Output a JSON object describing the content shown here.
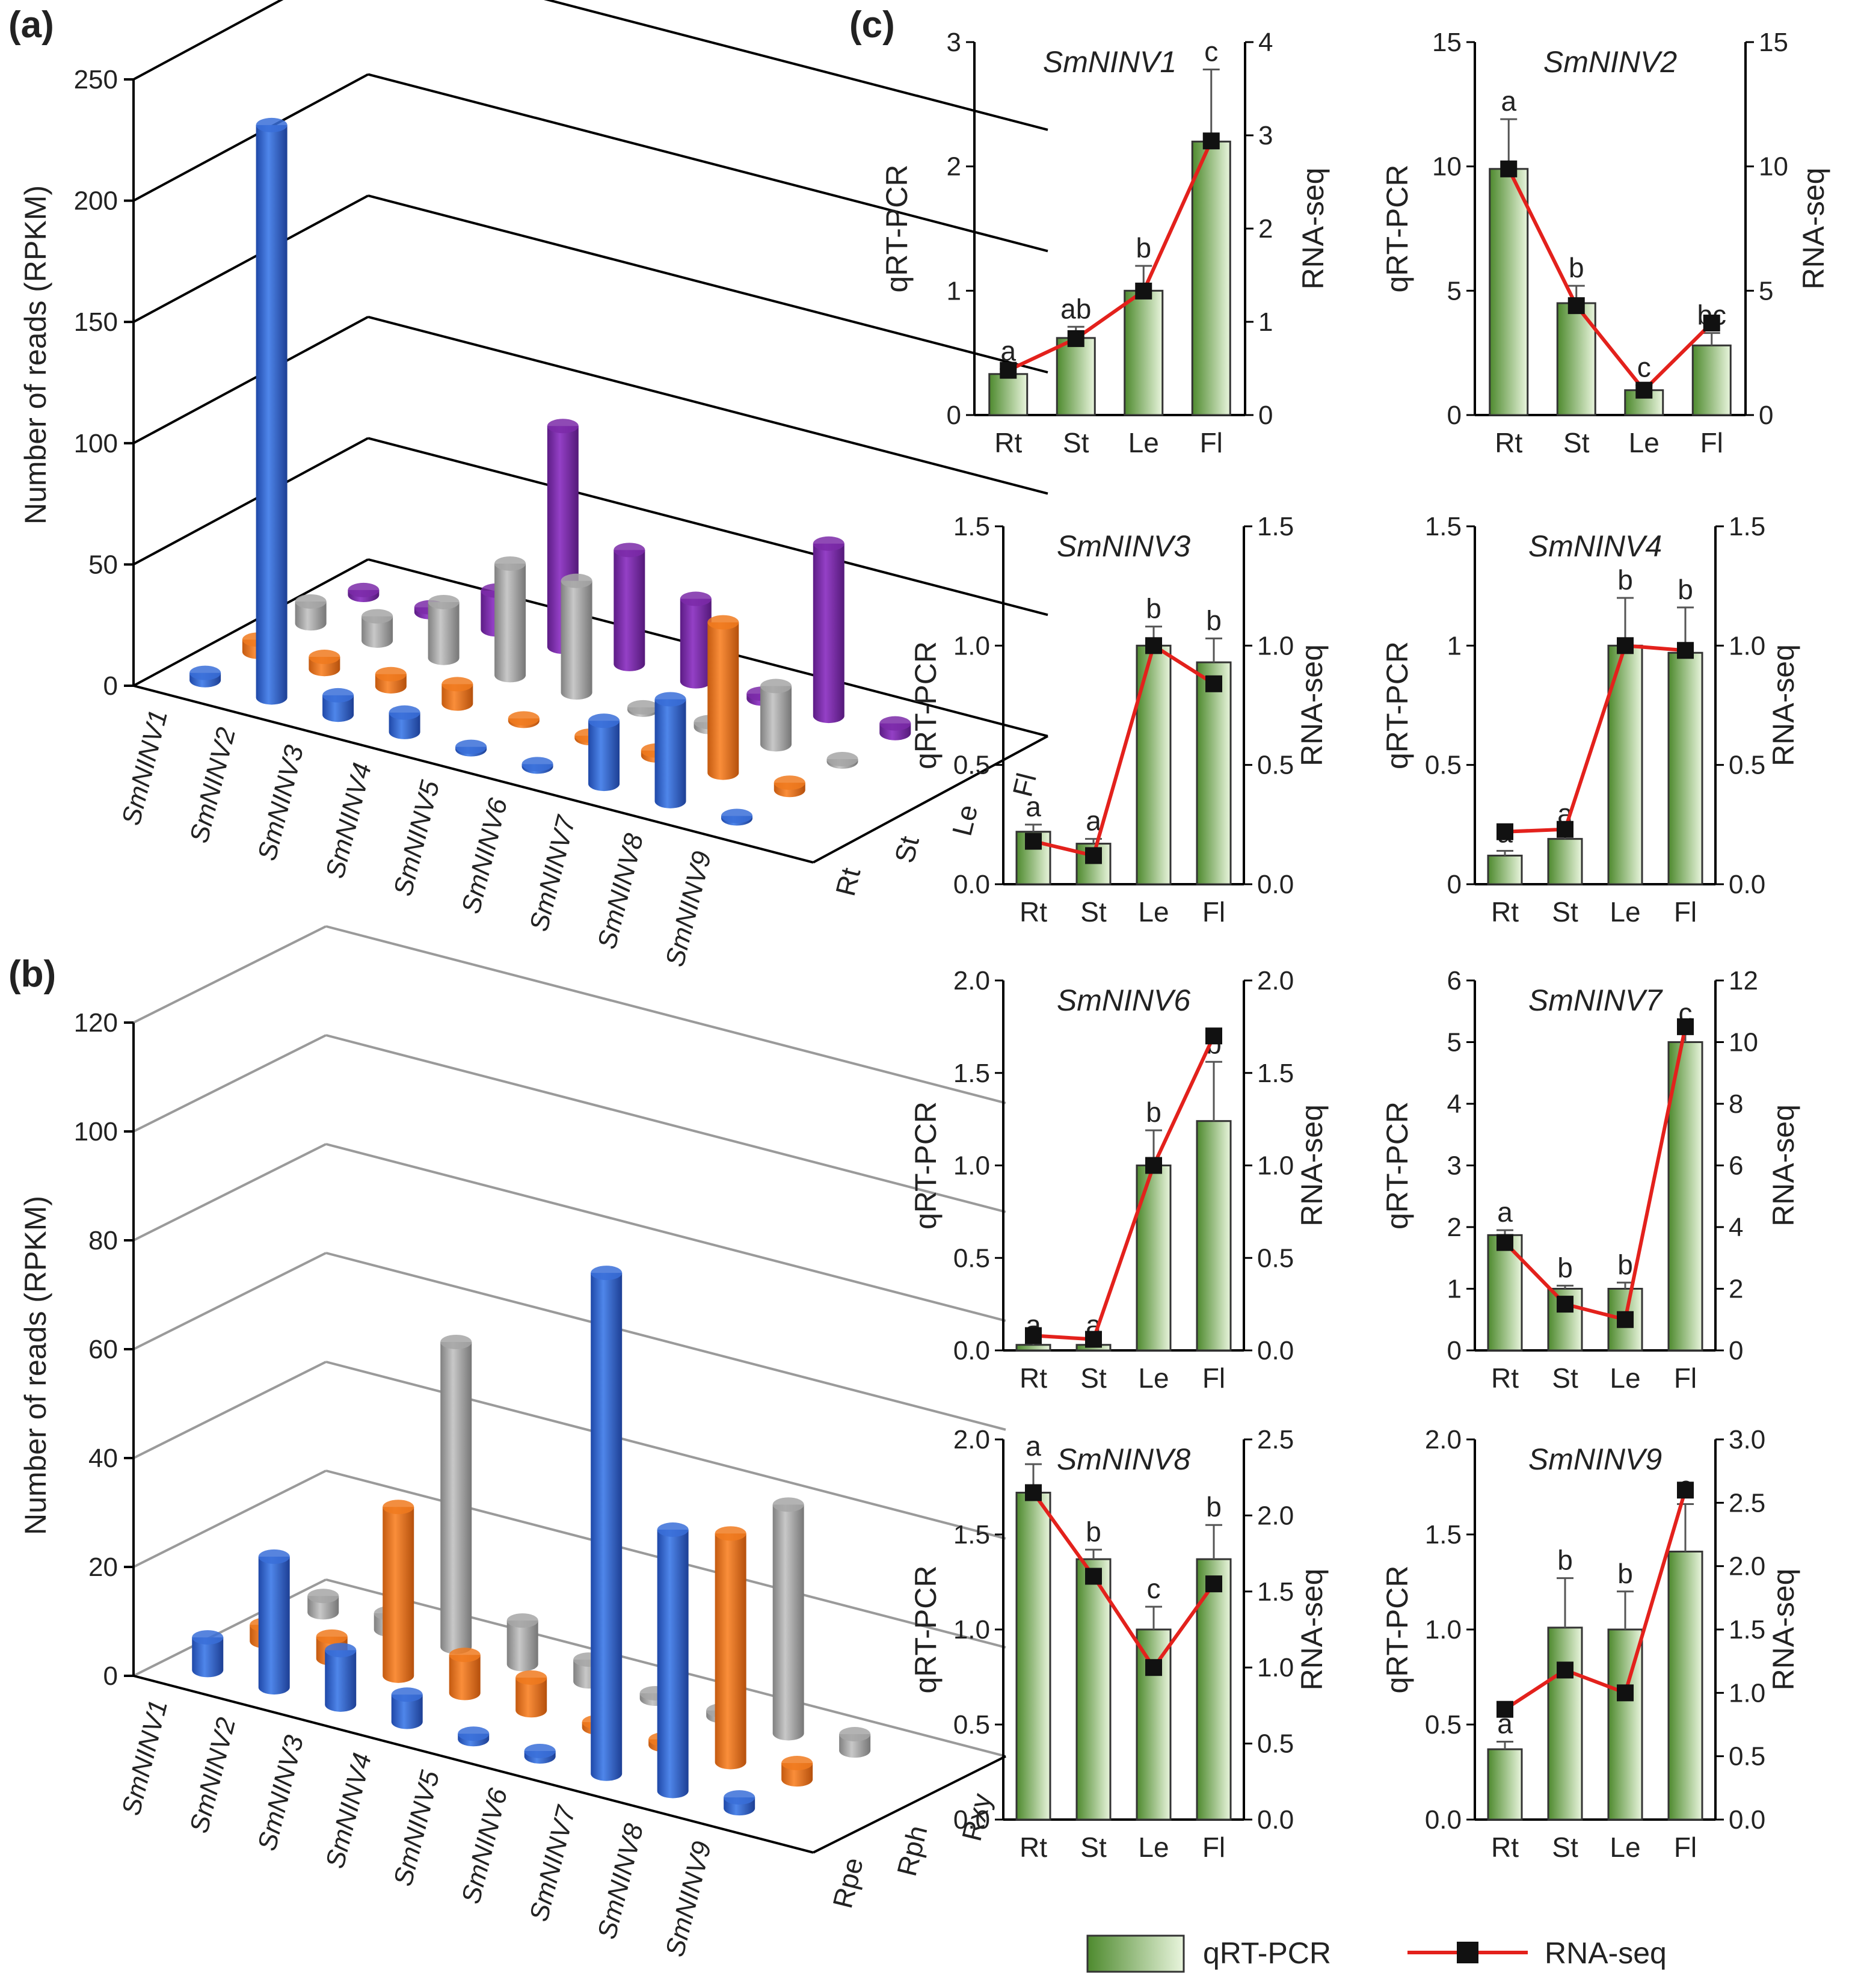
{
  "colors": {
    "bar_dark": "#4e8a2e",
    "bar_light": "#e9f5dd",
    "line": "#e3211c",
    "marker": "#111111",
    "rt": "#3a6fd8",
    "st": "#f07a1f",
    "le": "#a6a6a6",
    "fl": "#7b2aa8",
    "grid3d_a": "#000000",
    "grid3d_b": "#9a9a9a"
  },
  "legend": {
    "bar_label": "qRT-PCR",
    "line_label": "RNA-seq"
  },
  "chart_data": [
    {
      "panel": "(a)",
      "type": "bar",
      "style": "3d-cylinder",
      "ylabel": "Number of reads (RPKM)",
      "yticks": [
        "0",
        "50",
        "100",
        "150",
        "200",
        "250"
      ],
      "ylim": [
        0,
        250
      ],
      "categories": [
        "SmNINV1",
        "SmNINV2",
        "SmNINV3",
        "SmNINV4",
        "SmNINV5",
        "SmNINV6",
        "SmNINV7",
        "SmNINV8",
        "SmNINV9"
      ],
      "depth_labels": [
        "Rt",
        "St",
        "Le",
        "Fl"
      ],
      "series": [
        {
          "name": "Rt",
          "values": [
            3,
            236,
            8,
            8,
            1,
            1,
            26,
            42,
            1
          ]
        },
        {
          "name": "St",
          "values": [
            5,
            5,
            5,
            8,
            1,
            1,
            2,
            62,
            3
          ]
        },
        {
          "name": "Le",
          "values": [
            9,
            10,
            23,
            46,
            46,
            1,
            2,
            24,
            1
          ]
        },
        {
          "name": "Fl",
          "values": [
            2,
            2,
            16,
            91,
            47,
            34,
            2,
            71,
            4
          ]
        }
      ]
    },
    {
      "panel": "(b)",
      "type": "bar",
      "style": "3d-cylinder",
      "ylabel": "Number of reads (RPKM)",
      "yticks": [
        "0",
        "20",
        "40",
        "60",
        "80",
        "100",
        "120"
      ],
      "ylim": [
        0,
        120
      ],
      "categories": [
        "SmNINV1",
        "SmNINV2",
        "SmNINV3",
        "SmNINV4",
        "SmNINV5",
        "SmNINV6",
        "SmNINV7",
        "SmNINV8",
        "SmNINV9"
      ],
      "depth_labels": [
        "Rpe",
        "Rph",
        "Rxy"
      ],
      "series": [
        {
          "name": "Rpe",
          "values": [
            6,
            24,
            10,
            5,
            1,
            1,
            92,
            48,
            2
          ]
        },
        {
          "name": "Rph",
          "values": [
            3,
            4,
            31,
            7,
            6,
            1,
            1,
            42,
            3
          ]
        },
        {
          "name": "Rxy",
          "values": [
            3,
            3,
            56,
            8,
            4,
            1,
            1,
            42,
            3
          ]
        }
      ]
    },
    {
      "panel": "(c)",
      "type": "bar",
      "combo": "bar+line",
      "left_axis_label": "qRT-PCR",
      "right_axis_label": "RNA-seq",
      "categories": [
        "Rt",
        "St",
        "Le",
        "Fl"
      ],
      "subplots": [
        {
          "title": "SmNINV1",
          "bar": [
            0.33,
            0.62,
            1.0,
            2.2
          ],
          "err": [
            0.04,
            0.09,
            0.2,
            0.58
          ],
          "line": [
            0.48,
            0.82,
            1.33,
            2.94
          ],
          "sig": [
            "a",
            "ab",
            "b",
            "c"
          ],
          "lmax": 3,
          "rmax": 4,
          "lticks": [
            "0",
            "1",
            "2",
            "3"
          ],
          "rticks": [
            "0",
            "1",
            "2",
            "3",
            "4"
          ]
        },
        {
          "title": "SmNINV2",
          "bar": [
            9.9,
            4.5,
            1.0,
            2.8
          ],
          "err": [
            2.0,
            0.7,
            0.2,
            0.5
          ],
          "line": [
            9.9,
            4.4,
            1.0,
            3.7
          ],
          "sig": [
            "a",
            "b",
            "c",
            "bc"
          ],
          "lmax": 15,
          "rmax": 15,
          "lticks": [
            "0",
            "5",
            "10",
            "15"
          ],
          "rticks": [
            "0",
            "5",
            "10",
            "15"
          ]
        },
        {
          "title": "SmNINV3",
          "bar": [
            0.22,
            0.17,
            1.0,
            0.93
          ],
          "err": [
            0.03,
            0.02,
            0.08,
            0.1
          ],
          "line": [
            0.18,
            0.12,
            1.0,
            0.84
          ],
          "sig": [
            "a",
            "a",
            "b",
            "b"
          ],
          "lmax": 1.5,
          "rmax": 1.5,
          "lticks": [
            "0.0",
            "0.5",
            "1.0",
            "1.5"
          ],
          "rticks": [
            "0.0",
            "0.5",
            "1.0",
            "1.5"
          ]
        },
        {
          "title": "SmNINV4",
          "bar": [
            0.12,
            0.19,
            1.0,
            0.97
          ],
          "err": [
            0.02,
            0.03,
            0.2,
            0.19
          ],
          "line": [
            0.22,
            0.23,
            1.0,
            0.98
          ],
          "sig": [
            "a",
            "a",
            "b",
            "b"
          ],
          "lmax": 1.5,
          "rmax": 1.5,
          "lticks": [
            "0",
            "0.5",
            "1",
            "1.5"
          ],
          "rticks": [
            "0.0",
            "0.5",
            "1.0",
            "1.5"
          ]
        },
        {
          "title": "SmNINV6",
          "bar": [
            0.03,
            0.03,
            1.0,
            1.24
          ],
          "err": [
            0.01,
            0.01,
            0.19,
            0.32
          ],
          "line": [
            0.08,
            0.06,
            1.0,
            1.7
          ],
          "sig": [
            "a",
            "a",
            "b",
            "b"
          ],
          "lmax": 2.0,
          "rmax": 2.0,
          "lticks": [
            "0.0",
            "0.5",
            "1.0",
            "1.5",
            "2.0"
          ],
          "rticks": [
            "0.0",
            "0.5",
            "1.0",
            "1.5",
            "2.0"
          ]
        },
        {
          "title": "SmNINV7",
          "bar": [
            1.87,
            1.0,
            1.0,
            5.0
          ],
          "err": [
            0.08,
            0.05,
            0.1,
            0.18
          ],
          "line": [
            3.5,
            1.5,
            1.0,
            10.5
          ],
          "sig": [
            "a",
            "b",
            "b",
            "c"
          ],
          "lmax": 6,
          "rmax": 12,
          "lticks": [
            "0",
            "1",
            "2",
            "3",
            "4",
            "5",
            "6"
          ],
          "rticks": [
            "0",
            "2",
            "4",
            "6",
            "8",
            "10",
            "12"
          ]
        },
        {
          "title": "SmNINV8",
          "bar": [
            1.72,
            1.37,
            1.0,
            1.37
          ],
          "err": [
            0.15,
            0.05,
            0.12,
            0.18
          ],
          "line": [
            2.15,
            1.6,
            1.0,
            1.55
          ],
          "sig": [
            "a",
            "b",
            "c",
            "b"
          ],
          "lmax": 2.0,
          "rmax": 2.5,
          "lticks": [
            "0.0",
            "0.5",
            "1.0",
            "1.5",
            "2.0"
          ],
          "rticks": [
            "0.0",
            "0.5",
            "1.0",
            "1.5",
            "2.0",
            "2.5"
          ]
        },
        {
          "title": "SmNINV9",
          "bar": [
            0.37,
            1.01,
            1.0,
            1.41
          ],
          "err": [
            0.04,
            0.26,
            0.2,
            0.25
          ],
          "line": [
            0.87,
            1.18,
            1.0,
            2.6
          ],
          "sig": [
            "a",
            "b",
            "b",
            "c"
          ],
          "lmax": 2.0,
          "rmax": 3.0,
          "lticks": [
            "0.0",
            "0.5",
            "1.0",
            "1.5",
            "2.0"
          ],
          "rticks": [
            "0.0",
            "0.5",
            "1.0",
            "1.5",
            "2.0",
            "2.5",
            "3.0"
          ]
        }
      ]
    }
  ]
}
